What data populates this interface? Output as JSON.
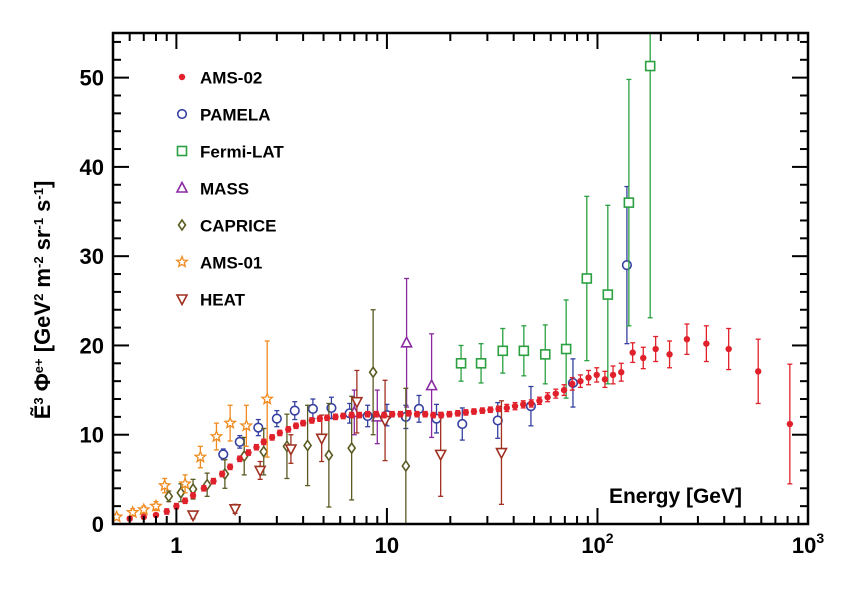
{
  "chart_data": {
    "type": "scatter",
    "xlabel": "Energy [GeV]",
    "ylabel": {
      "parts": [
        {
          "t": "Ẽ",
          "sup": false
        },
        {
          "t": "3",
          "sup": true
        },
        {
          "t": " Φ",
          "sup": false
        },
        {
          "t": "e+",
          "sup": true
        },
        {
          "t": " [GeV",
          "sup": false
        },
        {
          "t": "2",
          "sup": true
        },
        {
          "t": " m",
          "sup": false
        },
        {
          "t": "-2",
          "sup": true
        },
        {
          "t": " sr",
          "sup": false
        },
        {
          "t": "-1",
          "sup": true
        },
        {
          "t": " s",
          "sup": false
        },
        {
          "t": "-1",
          "sup": true
        },
        {
          "t": "]",
          "sup": false
        }
      ]
    },
    "xscale": "log",
    "xlim": [
      0.5,
      1000
    ],
    "ylim": [
      0,
      55
    ],
    "xticks": [
      {
        "v": 1,
        "base": "1",
        "exp": ""
      },
      {
        "v": 10,
        "base": "10",
        "exp": ""
      },
      {
        "v": 100,
        "base": "10",
        "exp": "2"
      },
      {
        "v": 1000,
        "base": "10",
        "exp": "3"
      }
    ],
    "yticks": [
      0,
      10,
      20,
      30,
      40,
      50
    ],
    "grid": false,
    "legend_position": "top-left",
    "series": [
      {
        "name": "AMS-02",
        "marker": "dot",
        "color": "#e0202a",
        "points": [
          [
            0.6,
            0.6,
            0.2
          ],
          [
            0.7,
            0.8,
            0.2
          ],
          [
            0.8,
            1.0,
            0.2
          ],
          [
            0.9,
            1.4,
            0.3
          ],
          [
            1.0,
            2.0,
            0.3
          ],
          [
            1.1,
            2.6,
            0.3
          ],
          [
            1.2,
            3.2,
            0.3
          ],
          [
            1.35,
            4.0,
            0.3
          ],
          [
            1.5,
            4.8,
            0.3
          ],
          [
            1.65,
            5.6,
            0.3
          ],
          [
            1.8,
            6.4,
            0.3
          ],
          [
            2.0,
            7.3,
            0.3
          ],
          [
            2.2,
            8.0,
            0.3
          ],
          [
            2.4,
            8.6,
            0.3
          ],
          [
            2.6,
            9.2,
            0.3
          ],
          [
            2.85,
            9.7,
            0.3
          ],
          [
            3.1,
            10.2,
            0.3
          ],
          [
            3.4,
            10.6,
            0.3
          ],
          [
            3.7,
            11.0,
            0.3
          ],
          [
            4.0,
            11.3,
            0.3
          ],
          [
            4.4,
            11.6,
            0.3
          ],
          [
            4.8,
            11.8,
            0.3
          ],
          [
            5.2,
            11.9,
            0.3
          ],
          [
            5.7,
            12.0,
            0.3
          ],
          [
            6.2,
            12.1,
            0.3
          ],
          [
            6.8,
            12.2,
            0.3
          ],
          [
            7.4,
            12.2,
            0.3
          ],
          [
            8.1,
            12.3,
            0.3
          ],
          [
            8.9,
            12.3,
            0.3
          ],
          [
            9.7,
            12.2,
            0.3
          ],
          [
            10.6,
            12.3,
            0.3
          ],
          [
            11.6,
            12.3,
            0.3
          ],
          [
            12.7,
            12.4,
            0.3
          ],
          [
            13.9,
            12.3,
            0.3
          ],
          [
            15.2,
            12.3,
            0.3
          ],
          [
            16.6,
            12.2,
            0.3
          ],
          [
            18.1,
            12.2,
            0.3
          ],
          [
            19.8,
            12.3,
            0.3
          ],
          [
            21.7,
            12.4,
            0.3
          ],
          [
            23.7,
            12.5,
            0.3
          ],
          [
            25.9,
            12.6,
            0.3
          ],
          [
            28.4,
            12.7,
            0.3
          ],
          [
            31.0,
            12.8,
            0.3
          ],
          [
            33.9,
            12.9,
            0.3
          ],
          [
            37.1,
            13.0,
            0.4
          ],
          [
            40.6,
            13.2,
            0.4
          ],
          [
            44.4,
            13.4,
            0.4
          ],
          [
            48.5,
            13.5,
            0.4
          ],
          [
            53.0,
            13.8,
            0.4
          ],
          [
            58.0,
            14.2,
            0.5
          ],
          [
            63.4,
            14.6,
            0.5
          ],
          [
            69.4,
            15.0,
            0.6
          ],
          [
            75.9,
            15.7,
            0.7
          ],
          [
            83.0,
            16.0,
            0.7
          ],
          [
            90.7,
            16.4,
            0.8
          ],
          [
            99.2,
            16.7,
            0.8
          ],
          [
            108.5,
            16.2,
            0.9
          ],
          [
            118.6,
            16.7,
            1.0
          ],
          [
            129.7,
            17.0,
            1.0
          ],
          [
            147.0,
            19.2,
            1.1
          ],
          [
            165.0,
            18.6,
            1.2
          ],
          [
            189.0,
            19.6,
            1.4
          ],
          [
            220.0,
            19.0,
            1.5
          ],
          [
            266.0,
            20.7,
            1.7
          ],
          [
            329.0,
            20.2,
            2.0
          ],
          [
            420.0,
            19.6,
            2.3
          ],
          [
            580.0,
            17.1,
            3.6
          ],
          [
            820.0,
            11.2,
            6.7
          ]
        ]
      },
      {
        "name": "PAMELA",
        "marker": "circle",
        "color": "#3540a0",
        "points": [
          [
            1.67,
            7.8,
            0.6
          ],
          [
            2.0,
            9.2,
            0.7
          ],
          [
            2.45,
            10.8,
            0.9
          ],
          [
            3.0,
            11.8,
            0.9
          ],
          [
            3.65,
            12.7,
            1.0
          ],
          [
            4.45,
            12.9,
            1.1
          ],
          [
            5.45,
            13.0,
            1.2
          ],
          [
            6.65,
            12.4,
            1.1
          ],
          [
            8.1,
            12.1,
            1.2
          ],
          [
            10.0,
            12.2,
            1.2
          ],
          [
            12.3,
            12.0,
            1.3
          ],
          [
            14.2,
            12.9,
            1.5
          ],
          [
            17.2,
            11.8,
            1.6
          ],
          [
            22.8,
            11.2,
            1.8
          ],
          [
            33.6,
            11.6,
            2.0
          ],
          [
            48.3,
            13.2,
            2.2
          ],
          [
            76.5,
            15.8,
            2.7
          ],
          [
            138.0,
            29.0,
            8.8
          ]
        ]
      },
      {
        "name": "Fermi-LAT",
        "marker": "square",
        "color": "#2aa040",
        "points": [
          [
            22.5,
            18.0,
            2.0
          ],
          [
            28.0,
            18.0,
            2.2
          ],
          [
            35.5,
            19.4,
            2.5
          ],
          [
            44.7,
            19.4,
            2.8
          ],
          [
            56.5,
            19.0,
            3.3
          ],
          [
            71.0,
            19.6,
            5.5
          ],
          [
            89.0,
            27.5,
            9.2
          ],
          [
            112.0,
            25.7,
            10.0
          ],
          [
            141.0,
            36.0,
            13.8
          ],
          [
            178.0,
            51.3,
            28.2
          ]
        ]
      },
      {
        "name": "MASS",
        "marker": "triangle-up",
        "color": "#8a2aa0",
        "points": [
          [
            7.0,
            12.5,
            2.5
          ],
          [
            9.0,
            12.0,
            3.0
          ],
          [
            12.4,
            20.3,
            7.2
          ],
          [
            16.3,
            15.5,
            5.8
          ]
        ]
      },
      {
        "name": "CAPRICE",
        "marker": "diamond",
        "color": "#5a5a22",
        "points": [
          [
            0.92,
            3.1,
            0.6
          ],
          [
            1.05,
            3.5,
            1.0
          ],
          [
            1.2,
            3.9,
            1.1
          ],
          [
            1.4,
            4.4,
            1.3
          ],
          [
            1.7,
            5.6,
            1.6
          ],
          [
            2.1,
            7.6,
            2.1
          ],
          [
            2.6,
            8.1,
            2.6
          ],
          [
            3.35,
            8.7,
            3.6
          ],
          [
            4.2,
            8.8,
            4.5
          ],
          [
            5.3,
            7.7,
            5.8
          ],
          [
            6.8,
            8.5,
            5.8
          ],
          [
            8.6,
            17.0,
            7.0
          ],
          [
            12.3,
            6.5,
            8.7
          ]
        ]
      },
      {
        "name": "AMS-01",
        "marker": "star",
        "color": "#f08a1e",
        "points": [
          [
            0.52,
            0.8,
            0.3
          ],
          [
            0.62,
            1.3,
            0.4
          ],
          [
            0.7,
            1.6,
            0.4
          ],
          [
            0.8,
            2.0,
            0.5
          ],
          [
            0.88,
            4.3,
            0.8
          ],
          [
            1.1,
            4.5,
            1.0
          ],
          [
            1.3,
            7.5,
            1.2
          ],
          [
            1.55,
            9.8,
            1.5
          ],
          [
            1.8,
            11.3,
            2.0
          ],
          [
            2.15,
            11.0,
            2.3
          ],
          [
            2.7,
            14.0,
            6.5
          ]
        ]
      },
      {
        "name": "HEAT",
        "marker": "triangle-down",
        "color": "#a03020",
        "points": [
          [
            1.2,
            1.0,
            0.4
          ],
          [
            1.9,
            1.7,
            0.5
          ],
          [
            2.5,
            6.0,
            1.0
          ],
          [
            3.5,
            8.4,
            1.6
          ],
          [
            4.9,
            9.6,
            2.6
          ],
          [
            7.2,
            13.7,
            3.5
          ],
          [
            9.8,
            11.6,
            4.5
          ],
          [
            18.0,
            7.8,
            4.7
          ],
          [
            35.0,
            8.0,
            5.8
          ]
        ]
      }
    ]
  }
}
